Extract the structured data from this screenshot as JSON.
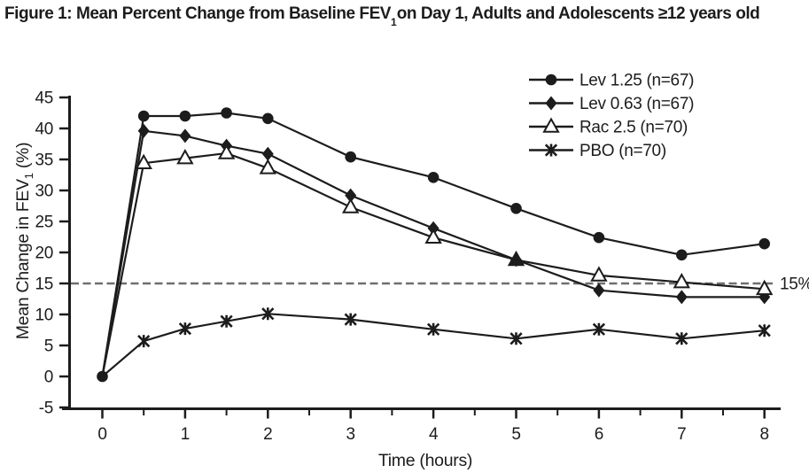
{
  "figure_title": {
    "prefix": "Figure 1: Mean Percent Change from Baseline FEV",
    "subscript": "1",
    "suffix": "on Day 1, Adults and Adolescents ≥12 years old"
  },
  "colors": {
    "ink": "#1c1c1c",
    "reference_line": "#6f6f6f",
    "background": "#ffffff"
  },
  "reference_line": {
    "value": 15,
    "label": "15%"
  },
  "chart_data": {
    "type": "line",
    "x": [
      0,
      0.5,
      1,
      1.5,
      2,
      3,
      4,
      5,
      6,
      7,
      8
    ],
    "xlabel": "Time (hours)",
    "ylabel_prefix": "Mean Change in FEV",
    "ylabel_subscript": "1",
    "ylabel_suffix": " (%)",
    "xlim": [
      0,
      8
    ],
    "ylim": [
      -5,
      45
    ],
    "x_major_ticks": [
      0,
      1,
      2,
      3,
      4,
      5,
      6,
      7,
      8
    ],
    "x_minor_step": 0.5,
    "y_ticks": [
      -5,
      0,
      5,
      10,
      15,
      20,
      25,
      30,
      35,
      40,
      45
    ],
    "grid": false,
    "legend_position": "top-right",
    "series": [
      {
        "name": "Lev 1.25 (n=67)",
        "marker": "circle",
        "values": [
          0,
          42.0,
          42.0,
          42.5,
          41.6,
          35.4,
          32.1,
          27.1,
          22.4,
          19.6,
          21.4
        ]
      },
      {
        "name": "Lev 0.63 (n=67)",
        "marker": "diamond",
        "values": [
          0,
          39.6,
          38.8,
          37.2,
          35.9,
          29.2,
          23.9,
          18.8,
          13.9,
          12.8,
          12.8
        ]
      },
      {
        "name": "Rac 2.5 (n=70)",
        "marker": "triangle-open",
        "values": [
          0,
          34.4,
          35.2,
          36.0,
          33.6,
          27.3,
          22.4,
          18.8,
          16.3,
          15.2,
          14.1
        ]
      },
      {
        "name": "PBO (n=70)",
        "marker": "star",
        "values": [
          0,
          5.7,
          7.7,
          8.9,
          10.1,
          9.2,
          7.6,
          6.1,
          7.6,
          6.1,
          7.4
        ]
      }
    ]
  }
}
